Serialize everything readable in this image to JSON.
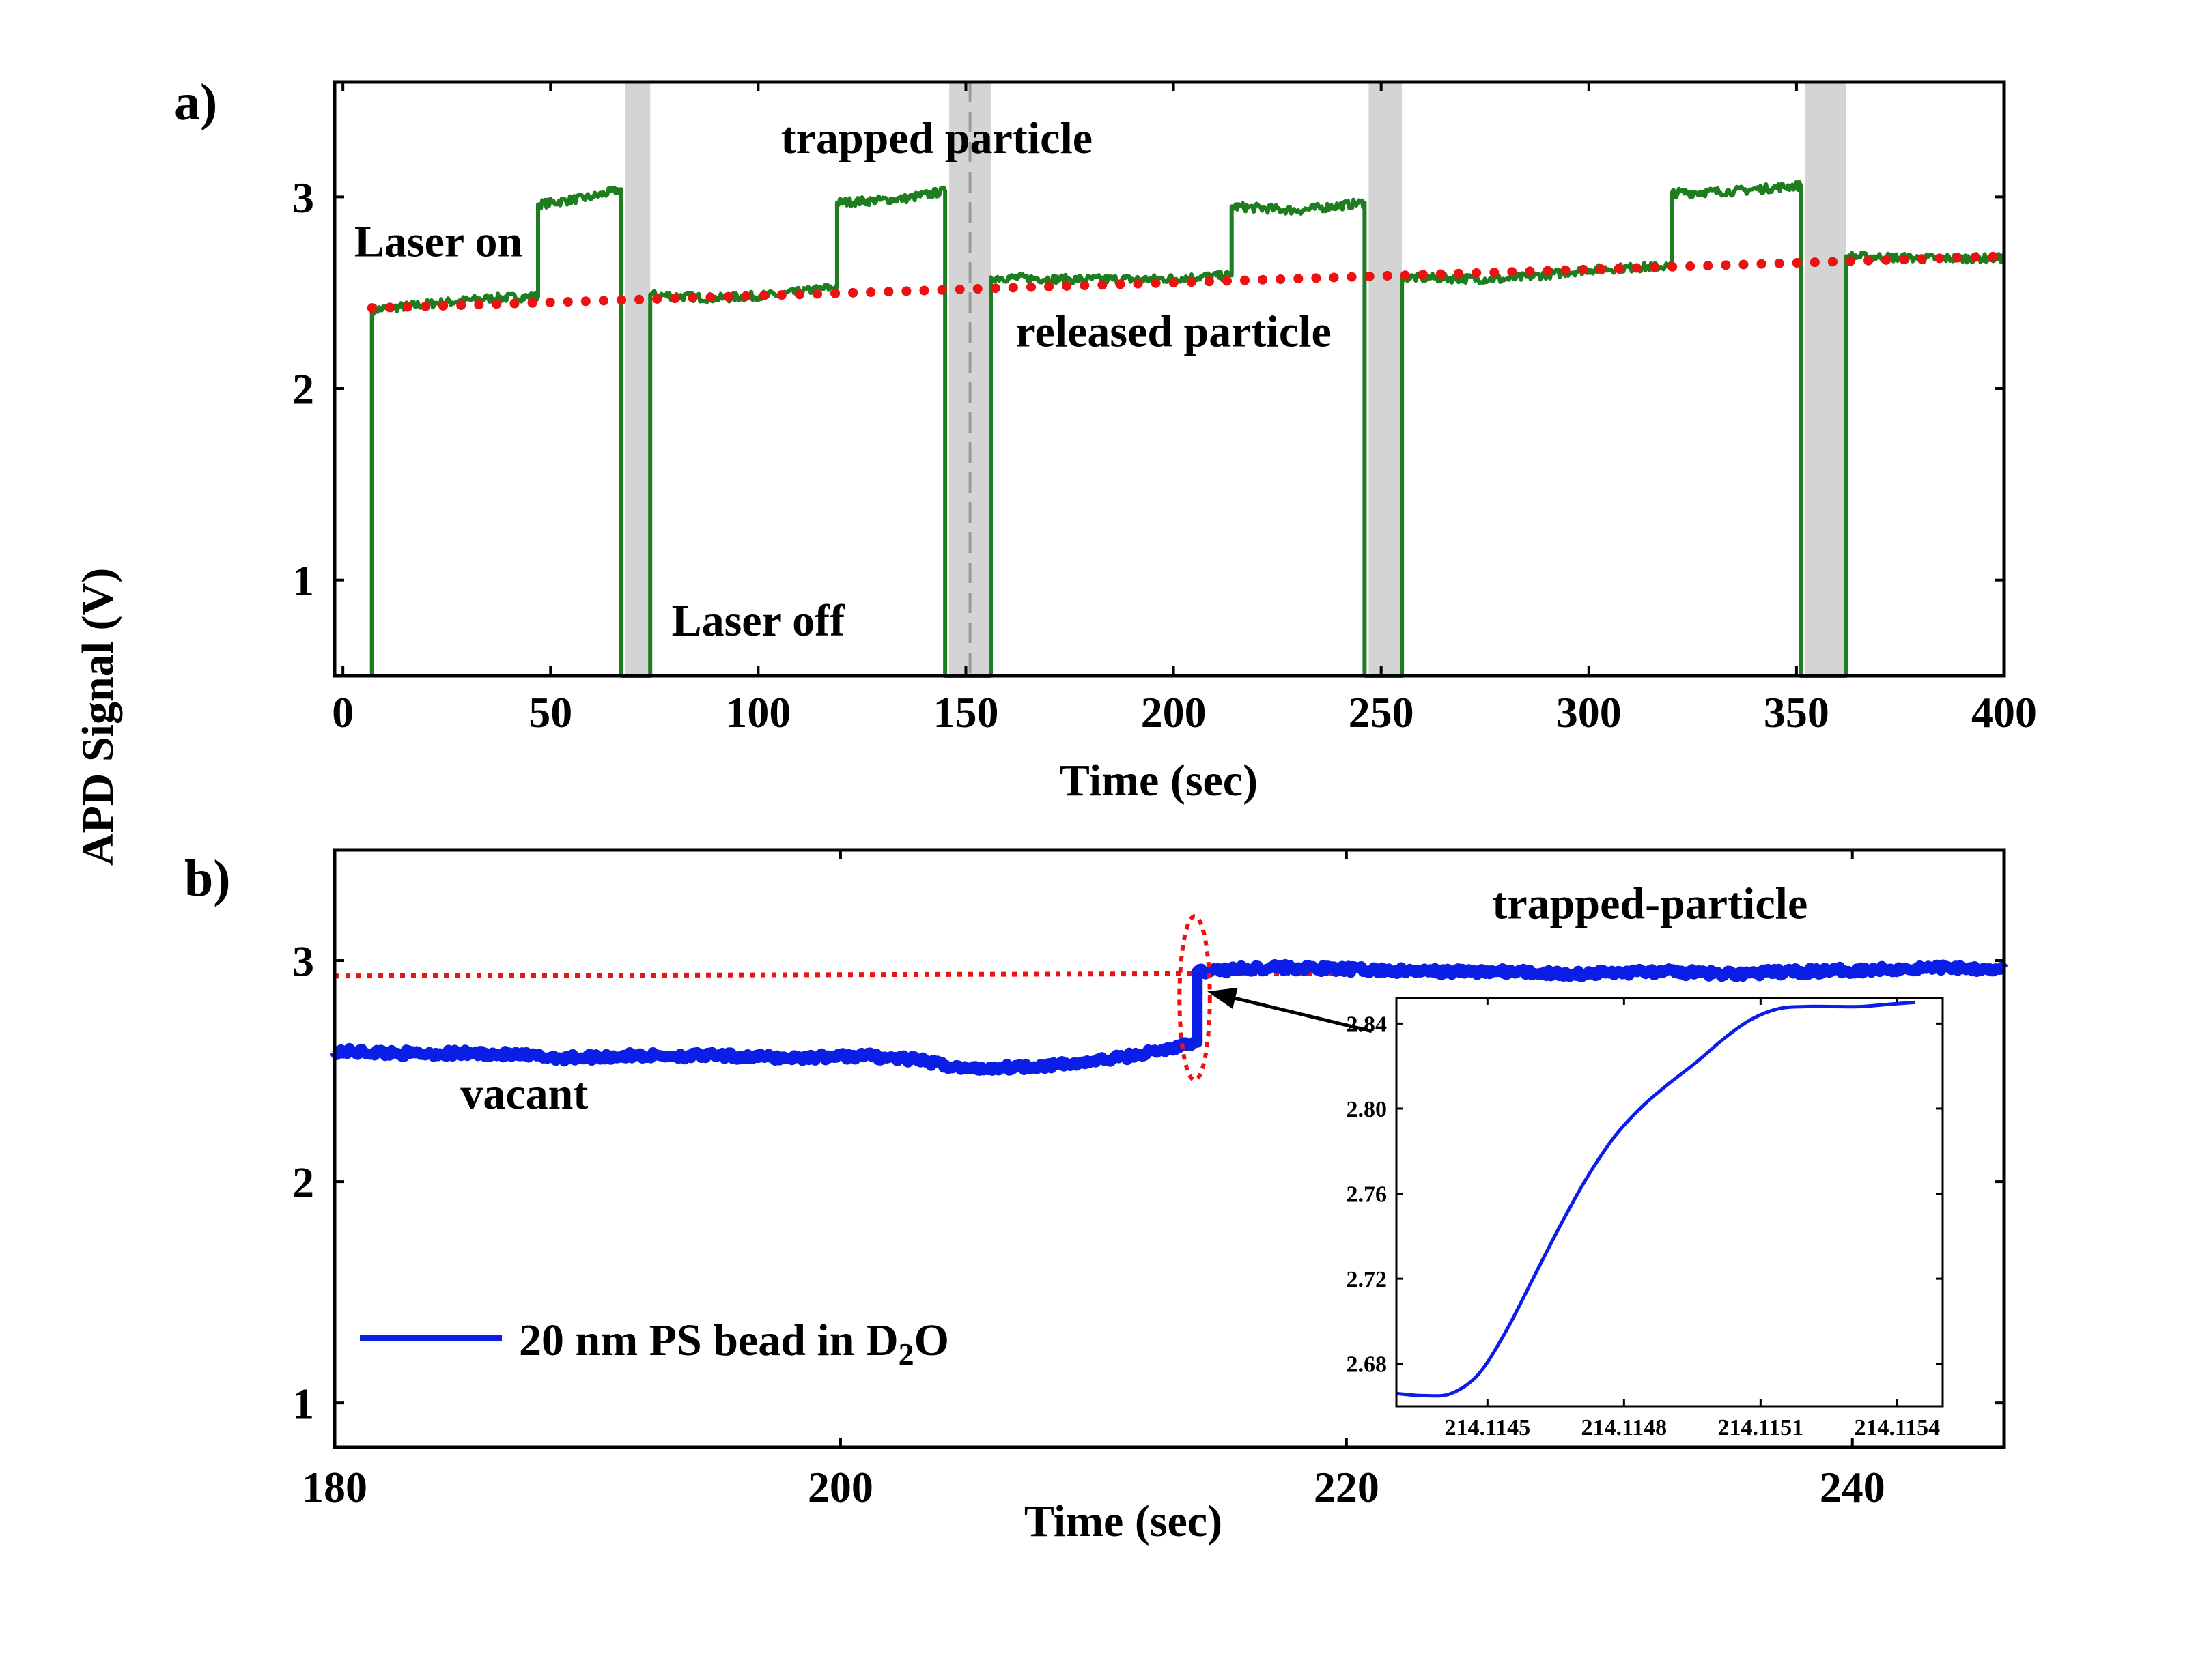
{
  "figure": {
    "shared_ylabel": "APD Signal (V)",
    "colors": {
      "trace_a": "#1e7d1e",
      "trace_b": "#0b1ee6",
      "baseline": "#ee1111",
      "laser_off_band": "#d4d4d4",
      "axes": "#000000"
    }
  },
  "chart_data": [
    {
      "id": "panel-a",
      "type": "line",
      "panel_label": "a)",
      "xlabel": "Time (sec)",
      "ylabel": "APD Signal (V)",
      "xlim": [
        -2,
        400
      ],
      "ylim": [
        0.5,
        3.6
      ],
      "xticks": [
        0,
        50,
        100,
        150,
        200,
        250,
        300,
        350,
        400
      ],
      "yticks": [
        1,
        2,
        3
      ],
      "laser_off_intervals": [
        [
          68,
          74
        ],
        [
          146,
          156
        ],
        [
          247,
          255
        ],
        [
          352,
          362
        ]
      ],
      "series": [
        {
          "name": "APD signal",
          "color": "#1e7d1e",
          "points": [
            [
              7,
              0.5
            ],
            [
              7,
              2.41
            ],
            [
              20,
              2.44
            ],
            [
              35,
              2.47
            ],
            [
              47,
              2.48
            ],
            [
              47,
              2.96
            ],
            [
              60,
              3.0
            ],
            [
              67,
              3.04
            ],
            [
              67,
              0.5
            ],
            [
              74,
              0.5
            ],
            [
              74,
              2.49
            ],
            [
              90,
              2.47
            ],
            [
              105,
              2.49
            ],
            [
              119,
              2.53
            ],
            [
              119,
              2.97
            ],
            [
              135,
              2.99
            ],
            [
              145,
              3.03
            ],
            [
              145,
              0.5
            ],
            [
              156,
              0.5
            ],
            [
              156,
              2.58
            ],
            [
              175,
              2.57
            ],
            [
              195,
              2.57
            ],
            [
              214,
              2.59
            ],
            [
              214,
              2.95
            ],
            [
              230,
              2.93
            ],
            [
              246,
              2.97
            ],
            [
              246,
              0.5
            ],
            [
              255,
              0.5
            ],
            [
              255,
              2.58
            ],
            [
              280,
              2.57
            ],
            [
              300,
              2.62
            ],
            [
              320,
              2.64
            ],
            [
              320,
              3.02
            ],
            [
              335,
              3.03
            ],
            [
              351,
              3.06
            ],
            [
              351,
              0.5
            ],
            [
              362,
              0.5
            ],
            [
              362,
              2.69
            ],
            [
              380,
              2.68
            ],
            [
              400,
              2.68
            ]
          ]
        },
        {
          "name": "baseline",
          "color": "#ee1111",
          "style": "dotted",
          "points": [
            [
              7,
              2.42
            ],
            [
              400,
              2.69
            ]
          ]
        }
      ],
      "annotations": [
        {
          "text": "Laser on",
          "x": 23,
          "y": 2.69
        },
        {
          "text": "trapped particle",
          "x": 143,
          "y": 3.23
        },
        {
          "text": "released particle",
          "x": 200,
          "y": 2.22
        },
        {
          "text": "Laser off",
          "x": 100,
          "y": 0.71
        }
      ]
    },
    {
      "id": "panel-b",
      "type": "line",
      "panel_label": "b)",
      "xlabel": "Time (sec)",
      "ylabel": "APD Signal (V)",
      "xlim": [
        180,
        246
      ],
      "ylim": [
        0.8,
        3.5
      ],
      "xticks": [
        180,
        200,
        220,
        240
      ],
      "yticks": [
        1,
        2,
        3
      ],
      "series": [
        {
          "name": "20 nm PS bead in D2O",
          "color": "#0b1ee6",
          "points": [
            [
              180,
              2.59
            ],
            [
              183,
              2.58
            ],
            [
              186,
              2.58
            ],
            [
              189,
              2.56
            ],
            [
              192,
              2.57
            ],
            [
              195,
              2.57
            ],
            [
              198,
              2.56
            ],
            [
              201,
              2.57
            ],
            [
              203,
              2.55
            ],
            [
              205,
              2.51
            ],
            [
              207,
              2.52
            ],
            [
              209,
              2.53
            ],
            [
              211,
              2.56
            ],
            [
              213,
              2.6
            ],
            [
              214.1,
              2.63
            ],
            [
              214.1,
              2.95
            ],
            [
              217,
              2.97
            ],
            [
              220,
              2.96
            ],
            [
              223,
              2.95
            ],
            [
              226,
              2.95
            ],
            [
              229,
              2.94
            ],
            [
              232,
              2.95
            ],
            [
              235,
              2.94
            ],
            [
              238,
              2.95
            ],
            [
              241,
              2.96
            ],
            [
              244,
              2.97
            ],
            [
              246,
              2.96
            ]
          ]
        },
        {
          "name": "baseline",
          "color": "#ee1111",
          "style": "dotted",
          "points": [
            [
              180,
              2.93
            ],
            [
              246,
              2.95
            ]
          ]
        }
      ],
      "legend": {
        "label_main": "20 nm PS bead in D",
        "label_sub": "2",
        "label_end": "O",
        "placement": "bottom-left"
      },
      "annotations": [
        {
          "text": "vacant",
          "x": 187.5,
          "y": 2.33
        },
        {
          "text": "trapped-particle",
          "x": 232,
          "y": 3.19
        }
      ],
      "highlight_ellipse": {
        "cx": 214.0,
        "cy": 2.83,
        "rx": 0.6,
        "ry": 0.37
      },
      "arrow": {
        "from": [
          221,
          2.68
        ],
        "to": [
          214.5,
          2.86
        ]
      }
    },
    {
      "id": "panel-b-inset",
      "type": "line",
      "xlim": [
        214.1143,
        214.1155
      ],
      "ylim": [
        2.66,
        2.852
      ],
      "xticks": [
        214.1145,
        214.1148,
        214.1151,
        214.1154
      ],
      "yticks": [
        2.68,
        2.72,
        2.76,
        2.8,
        2.84
      ],
      "xtick_labels": [
        "214.1145",
        "214.1148",
        "214.1151",
        "214.1154"
      ],
      "ytick_labels": [
        "2.68",
        "2.72",
        "2.76",
        "2.80",
        "2.84"
      ],
      "series": [
        {
          "name": "zoomed transition",
          "color": "#0b1ee6",
          "points": [
            [
              214.1143,
              2.666
            ],
            [
              214.11436,
              2.665
            ],
            [
              214.11442,
              2.666
            ],
            [
              214.11448,
              2.675
            ],
            [
              214.11454,
              2.695
            ],
            [
              214.1146,
              2.72
            ],
            [
              214.11466,
              2.745
            ],
            [
              214.11472,
              2.768
            ],
            [
              214.11478,
              2.787
            ],
            [
              214.11484,
              2.801
            ],
            [
              214.1149,
              2.812
            ],
            [
              214.11496,
              2.822
            ],
            [
              214.11502,
              2.833
            ],
            [
              214.11508,
              2.842
            ],
            [
              214.11514,
              2.847
            ],
            [
              214.1152,
              2.848
            ],
            [
              214.11526,
              2.848
            ],
            [
              214.11532,
              2.848
            ],
            [
              214.11538,
              2.849
            ],
            [
              214.11544,
              2.85
            ]
          ]
        }
      ]
    }
  ]
}
